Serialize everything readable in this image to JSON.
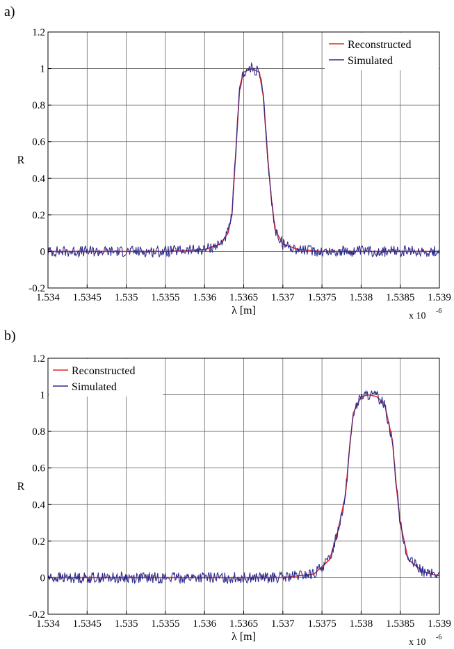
{
  "panels": [
    {
      "label": "a)",
      "chart": {
        "type": "line",
        "xlabel": "λ [m]",
        "ylabel": "R",
        "x_multiplier_base": "x 10",
        "x_multiplier_exp": "-6",
        "xlim": [
          1.534,
          1.539
        ],
        "ylim": [
          -0.2,
          1.2
        ],
        "x_ticks": [
          1.534,
          1.5345,
          1.535,
          1.5355,
          1.536,
          1.5365,
          1.537,
          1.5375,
          1.538,
          1.5385,
          1.539
        ],
        "x_tick_labels": [
          "1.534",
          "1.5345",
          "1.535",
          "1.5355",
          "1.536",
          "1.5365",
          "1.537",
          "1.5375",
          "1.538",
          "1.5385",
          "1.539"
        ],
        "y_ticks": [
          -0.2,
          0,
          0.2,
          0.4,
          0.6,
          0.8,
          1,
          1.2
        ],
        "y_tick_labels": [
          "-0.2",
          "0",
          "0.2",
          "0.4",
          "0.6",
          "0.8",
          "1",
          "1.2"
        ],
        "grid": true,
        "legend_position": "top-right",
        "series": [
          {
            "name": "Reconstructed",
            "color": "#e8262a",
            "x": [
              1.534,
              1.5355,
              1.536,
              1.5362,
              1.5363,
              1.53635,
              1.5364,
              1.53645,
              1.5365,
              1.5366,
              1.5367,
              1.53675,
              1.5368,
              1.53685,
              1.5369,
              1.537,
              1.5372,
              1.5375,
              1.539
            ],
            "y": [
              0.0,
              0.0,
              0.01,
              0.04,
              0.1,
              0.2,
              0.55,
              0.9,
              0.98,
              1.0,
              0.98,
              0.85,
              0.55,
              0.3,
              0.12,
              0.04,
              0.01,
              0.0,
              0.0
            ]
          },
          {
            "name": "Simulated",
            "color": "#2b2d8c",
            "x": [
              1.534,
              1.5355,
              1.536,
              1.5362,
              1.5363,
              1.53635,
              1.5364,
              1.53645,
              1.5365,
              1.5366,
              1.5367,
              1.53675,
              1.5368,
              1.53685,
              1.5369,
              1.537,
              1.5372,
              1.5375,
              1.539
            ],
            "y": [
              0.0,
              0.0,
              0.01,
              0.04,
              0.1,
              0.2,
              0.55,
              0.9,
              0.98,
              1.0,
              0.98,
              0.85,
              0.55,
              0.3,
              0.12,
              0.04,
              0.01,
              0.0,
              0.0
            ],
            "noise_amplitude": 0.03
          }
        ]
      }
    },
    {
      "label": "b)",
      "chart": {
        "type": "line",
        "xlabel": "λ [m]",
        "ylabel": "R",
        "x_multiplier_base": "x 10",
        "x_multiplier_exp": "-6",
        "xlim": [
          1.534,
          1.539
        ],
        "ylim": [
          -0.2,
          1.2
        ],
        "x_ticks": [
          1.534,
          1.5345,
          1.535,
          1.5355,
          1.536,
          1.5365,
          1.537,
          1.5375,
          1.538,
          1.5385,
          1.539
        ],
        "x_tick_labels": [
          "1.534",
          "1.5345",
          "1.535",
          "1.5355",
          "1.536",
          "1.5365",
          "1.537",
          "1.5375",
          "1.538",
          "1.5385",
          "1.539"
        ],
        "y_ticks": [
          -0.2,
          0,
          0.2,
          0.4,
          0.6,
          0.8,
          1,
          1.2
        ],
        "y_tick_labels": [
          "-0.2",
          "0",
          "0.2",
          "0.4",
          "0.6",
          "0.8",
          "1",
          "1.2"
        ],
        "grid": true,
        "legend_position": "top-left",
        "series": [
          {
            "name": "Reconstructed",
            "color": "#e8262a",
            "x": [
              1.534,
              1.537,
              1.5374,
              1.5376,
              1.5377,
              1.5378,
              1.53785,
              1.5379,
              1.538,
              1.5381,
              1.5382,
              1.5383,
              1.5384,
              1.53845,
              1.5385,
              1.5386,
              1.5388,
              1.539
            ],
            "y": [
              0.0,
              0.0,
              0.02,
              0.1,
              0.25,
              0.45,
              0.7,
              0.9,
              0.99,
              1.0,
              0.99,
              0.95,
              0.75,
              0.5,
              0.3,
              0.1,
              0.03,
              0.01
            ]
          },
          {
            "name": "Simulated",
            "color": "#2b2d8c",
            "x": [
              1.534,
              1.537,
              1.5374,
              1.5376,
              1.5377,
              1.5378,
              1.53785,
              1.5379,
              1.538,
              1.5381,
              1.5382,
              1.5383,
              1.5384,
              1.53845,
              1.5385,
              1.5386,
              1.5388,
              1.539
            ],
            "y": [
              0.0,
              0.0,
              0.02,
              0.1,
              0.25,
              0.45,
              0.7,
              0.9,
              0.99,
              1.0,
              0.99,
              0.95,
              0.75,
              0.5,
              0.3,
              0.1,
              0.03,
              0.01
            ],
            "noise_amplitude": 0.03
          }
        ]
      }
    }
  ]
}
